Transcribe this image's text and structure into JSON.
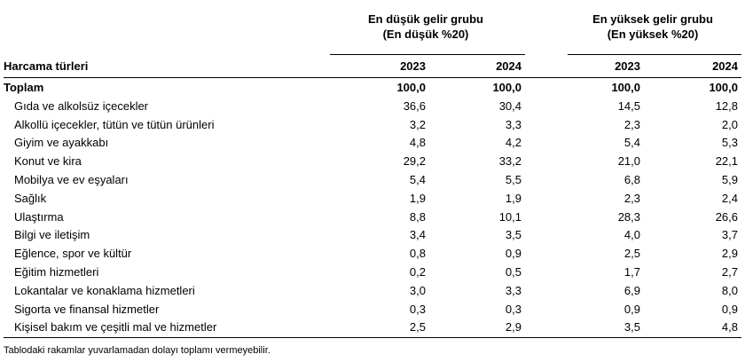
{
  "header": {
    "group1_title": "En düşük gelir grubu",
    "group1_sub": "(En düşük %20)",
    "group2_title": "En yüksek gelir grubu",
    "group2_sub": "(En yüksek %20)",
    "row_label": "Harcama türleri",
    "years": [
      "2023",
      "2024",
      "2023",
      "2024"
    ]
  },
  "rows": [
    {
      "label": "Toplam",
      "values": [
        "100,0",
        "100,0",
        "100,0",
        "100,0"
      ]
    },
    {
      "label": "Gıda ve alkolsüz içecekler",
      "values": [
        "36,6",
        "30,4",
        "14,5",
        "12,8"
      ]
    },
    {
      "label": "Alkollü içecekler, tütün ve tütün ürünleri",
      "values": [
        "3,2",
        "3,3",
        "2,3",
        "2,0"
      ]
    },
    {
      "label": "Giyim ve ayakkabı",
      "values": [
        "4,8",
        "4,2",
        "5,4",
        "5,3"
      ]
    },
    {
      "label": "Konut ve kira",
      "values": [
        "29,2",
        "33,2",
        "21,0",
        "22,1"
      ]
    },
    {
      "label": "Mobilya ve ev eşyaları",
      "values": [
        "5,4",
        "5,5",
        "6,8",
        "5,9"
      ]
    },
    {
      "label": "Sağlık",
      "values": [
        "1,9",
        "1,9",
        "2,3",
        "2,4"
      ]
    },
    {
      "label": "Ulaştırma",
      "values": [
        "8,8",
        "10,1",
        "28,3",
        "26,6"
      ]
    },
    {
      "label": "Bilgi ve iletişim",
      "values": [
        "3,4",
        "3,5",
        "4,0",
        "3,7"
      ]
    },
    {
      "label": "Eğlence, spor ve kültür",
      "values": [
        "0,8",
        "0,9",
        "2,5",
        "2,9"
      ]
    },
    {
      "label": "Eğitim hizmetleri",
      "values": [
        "0,2",
        "0,5",
        "1,7",
        "2,7"
      ]
    },
    {
      "label": "Lokantalar ve konaklama hizmetleri",
      "values": [
        "3,0",
        "3,3",
        "6,9",
        "8,0"
      ]
    },
    {
      "label": "Sigorta ve finansal hizmetler",
      "values": [
        "0,3",
        "0,3",
        "0,9",
        "0,9"
      ]
    },
    {
      "label": "Kişisel bakım ve çeşitli mal ve hizmetler",
      "values": [
        "2,5",
        "2,9",
        "3,5",
        "4,8"
      ]
    }
  ],
  "footnote": "Tablodaki rakamlar yuvarlamadan dolayı toplamı vermeyebilir."
}
